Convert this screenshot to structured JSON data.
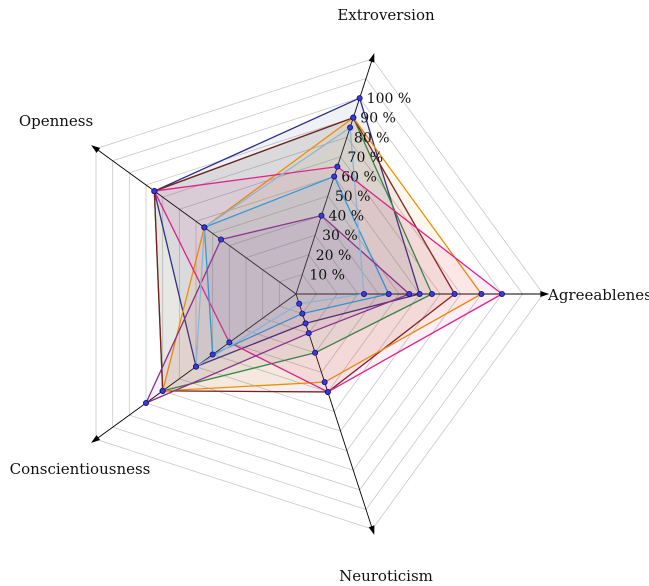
{
  "chart_data": {
    "type": "radar",
    "title": "",
    "axes": [
      "Extroversion",
      "Agreeableness",
      "Neuroticism",
      "Conscientiousness",
      "Openness"
    ],
    "ticks": [
      "10 %",
      "20 %",
      "30 %",
      "40 %",
      "50 %",
      "60 %",
      "70 %",
      "80 %",
      "90 %",
      "100 %"
    ],
    "r_range": [
      0,
      100
    ],
    "grid": true,
    "legend": "none",
    "series": [
      {
        "color": "#2c2c8c",
        "values": [
          100,
          60,
          15,
          60,
          85
        ]
      },
      {
        "color": "#1f8f4f",
        "values": [
          90,
          66,
          30,
          80,
          85
        ]
      },
      {
        "color": "#7a1f1f",
        "values": [
          90,
          77,
          50,
          80,
          85
        ]
      },
      {
        "color": "#ee8f00",
        "values": [
          90,
          90,
          45,
          80,
          55
        ]
      },
      {
        "color": "#e0208a",
        "values": [
          65,
          100,
          50,
          40,
          85
        ]
      },
      {
        "color": "#2a9ad6",
        "values": [
          60,
          45,
          10,
          50,
          55
        ]
      },
      {
        "color": "#8b2d8b",
        "values": [
          40,
          55,
          20,
          90,
          45
        ]
      },
      {
        "color": "#8ab5d9",
        "values": [
          85,
          33,
          5,
          60,
          55
        ]
      }
    ]
  }
}
